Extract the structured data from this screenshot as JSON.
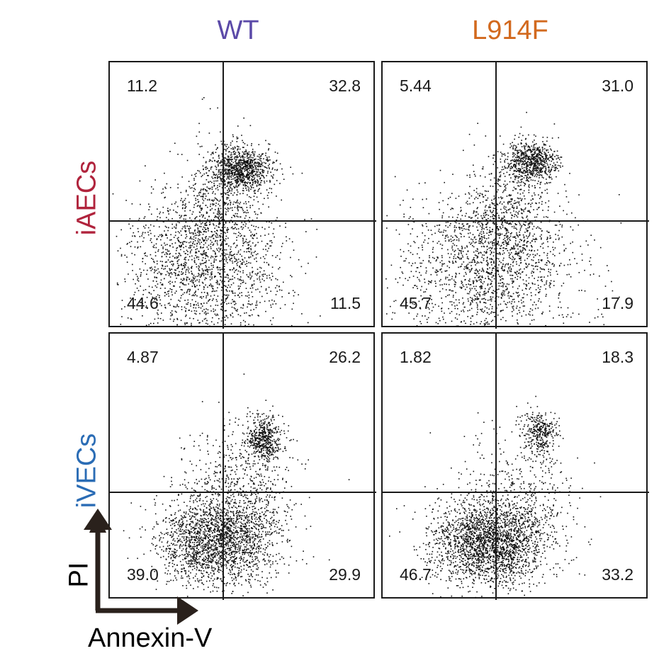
{
  "columns": [
    {
      "label": "WT",
      "color": "#5b4aa8"
    },
    {
      "label": "L914F",
      "color": "#d2691e"
    }
  ],
  "rows": [
    {
      "label": "iAECs",
      "color": "#b0233c"
    },
    {
      "label": "iVECs",
      "color": "#2a6cb5"
    }
  ],
  "axes": {
    "x_label": "Annexin-V",
    "y_label": "PI"
  },
  "chart_data": {
    "type": "scatter",
    "title": "",
    "xlabel": "Annexin-V",
    "ylabel": "PI",
    "quadrant_order": [
      "upper-left",
      "upper-right",
      "lower-left",
      "lower-right"
    ],
    "panels": [
      {
        "row": "iAECs",
        "column": "WT",
        "quadrants": {
          "upper_left": "11.2",
          "upper_right": "32.8",
          "lower_left": "44.6",
          "lower_right": "11.5"
        }
      },
      {
        "row": "iAECs",
        "column": "L914F",
        "quadrants": {
          "upper_left": "5.44",
          "upper_right": "31.0",
          "lower_left": "45.7",
          "lower_right": "17.9"
        }
      },
      {
        "row": "iVECs",
        "column": "WT",
        "quadrants": {
          "upper_left": "4.87",
          "upper_right": "26.2",
          "lower_left": "39.0",
          "lower_right": "29.9"
        }
      },
      {
        "row": "iVECs",
        "column": "L914F",
        "quadrants": {
          "upper_left": "1.82",
          "upper_right": "18.3",
          "lower_left": "46.7",
          "lower_right": "33.2"
        }
      }
    ]
  }
}
